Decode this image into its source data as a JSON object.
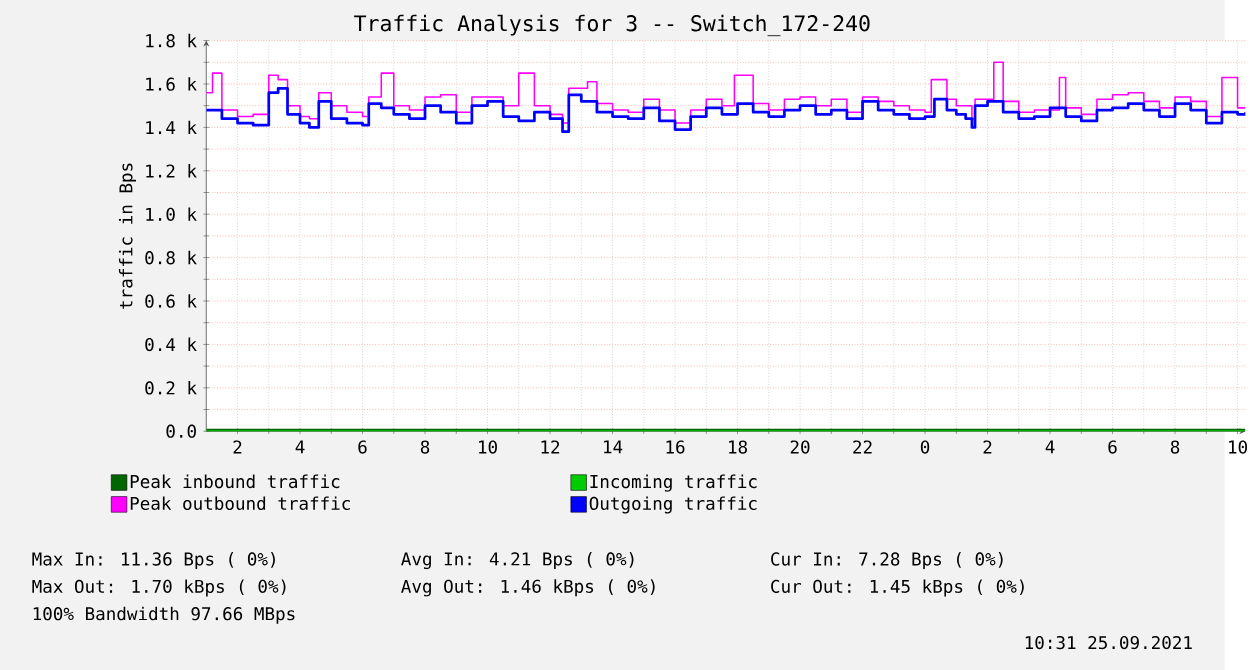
{
  "chart_data": {
    "type": "step",
    "title": "Traffic Analysis for 3 -- Switch_172-240",
    "ylabel": "traffic in Bps",
    "xlim": [
      "2021-09-24T01:00",
      "2021-09-25T10:15"
    ],
    "ylim": [
      0,
      1800
    ],
    "xticks": [
      {
        "value": "2021-09-24T02:00",
        "label": "2"
      },
      {
        "value": "2021-09-24T04:00",
        "label": "4"
      },
      {
        "value": "2021-09-24T06:00",
        "label": "6"
      },
      {
        "value": "2021-09-24T08:00",
        "label": "8"
      },
      {
        "value": "2021-09-24T10:00",
        "label": "10"
      },
      {
        "value": "2021-09-24T12:00",
        "label": "12"
      },
      {
        "value": "2021-09-24T14:00",
        "label": "14"
      },
      {
        "value": "2021-09-24T16:00",
        "label": "16"
      },
      {
        "value": "2021-09-24T18:00",
        "label": "18"
      },
      {
        "value": "2021-09-24T20:00",
        "label": "20"
      },
      {
        "value": "2021-09-24T22:00",
        "label": "22"
      },
      {
        "value": "2021-09-25T00:00",
        "label": "0"
      },
      {
        "value": "2021-09-25T02:00",
        "label": "2"
      },
      {
        "value": "2021-09-25T04:00",
        "label": "4"
      },
      {
        "value": "2021-09-25T06:00",
        "label": "6"
      },
      {
        "value": "2021-09-25T08:00",
        "label": "8"
      },
      {
        "value": "2021-09-25T10:00",
        "label": "10"
      }
    ],
    "yticks": [
      {
        "value": 0,
        "label": "0.0"
      },
      {
        "value": 200,
        "label": "0.2 k"
      },
      {
        "value": 400,
        "label": "0.4 k"
      },
      {
        "value": 600,
        "label": "0.6 k"
      },
      {
        "value": 800,
        "label": "0.8 k"
      },
      {
        "value": 1000,
        "label": "1.0 k"
      },
      {
        "value": 1200,
        "label": "1.2 k"
      },
      {
        "value": 1400,
        "label": "1.4 k"
      },
      {
        "value": 1600,
        "label": "1.6 k"
      },
      {
        "value": 1800,
        "label": "1.8 k"
      }
    ],
    "grid": true,
    "legend": "bottom",
    "series": [
      {
        "name": "Peak inbound traffic",
        "color": "#006600",
        "x": [
          "2021-09-24T01:00",
          "2021-09-25T10:15"
        ],
        "values": [
          0,
          0
        ]
      },
      {
        "name": "Incoming traffic",
        "color": "#00cc00",
        "x": [
          "2021-09-24T01:00",
          "2021-09-25T10:15"
        ],
        "values": [
          0,
          0
        ]
      },
      {
        "name": "Peak outbound traffic",
        "color": "#ff00ff",
        "x": [
          "2021-09-24T01:00",
          "2021-09-24T01:12",
          "2021-09-24T01:30",
          "2021-09-24T02:00",
          "2021-09-24T02:30",
          "2021-09-24T03:00",
          "2021-09-24T03:18",
          "2021-09-24T03:36",
          "2021-09-24T04:00",
          "2021-09-24T04:18",
          "2021-09-24T04:36",
          "2021-09-24T05:00",
          "2021-09-24T05:30",
          "2021-09-24T06:00",
          "2021-09-24T06:12",
          "2021-09-24T06:36",
          "2021-09-24T07:00",
          "2021-09-24T07:30",
          "2021-09-24T08:00",
          "2021-09-24T08:30",
          "2021-09-24T09:00",
          "2021-09-24T09:30",
          "2021-09-24T10:00",
          "2021-09-24T10:30",
          "2021-09-24T11:00",
          "2021-09-24T11:30",
          "2021-09-24T12:00",
          "2021-09-24T12:24",
          "2021-09-24T12:36",
          "2021-09-24T13:12",
          "2021-09-24T13:30",
          "2021-09-24T14:00",
          "2021-09-24T14:30",
          "2021-09-24T15:00",
          "2021-09-24T15:30",
          "2021-09-24T16:00",
          "2021-09-24T16:30",
          "2021-09-24T17:00",
          "2021-09-24T17:30",
          "2021-09-24T17:54",
          "2021-09-24T18:30",
          "2021-09-24T19:00",
          "2021-09-24T19:30",
          "2021-09-24T20:00",
          "2021-09-24T20:30",
          "2021-09-24T21:00",
          "2021-09-24T21:30",
          "2021-09-24T22:00",
          "2021-09-24T22:30",
          "2021-09-24T23:00",
          "2021-09-24T23:30",
          "2021-09-25T00:00",
          "2021-09-25T00:12",
          "2021-09-25T00:42",
          "2021-09-25T01:00",
          "2021-09-25T01:30",
          "2021-09-25T01:36",
          "2021-09-25T02:12",
          "2021-09-25T02:30",
          "2021-09-25T03:00",
          "2021-09-25T03:30",
          "2021-09-25T04:18",
          "2021-09-25T04:30",
          "2021-09-25T05:00",
          "2021-09-25T05:30",
          "2021-09-25T06:00",
          "2021-09-25T06:30",
          "2021-09-25T07:00",
          "2021-09-25T07:30",
          "2021-09-25T08:00",
          "2021-09-25T08:30",
          "2021-09-25T09:00",
          "2021-09-25T09:30",
          "2021-09-25T10:00",
          "2021-09-25T10:15"
        ],
        "values": [
          1560,
          1650,
          1480,
          1450,
          1460,
          1640,
          1620,
          1500,
          1450,
          1440,
          1560,
          1500,
          1470,
          1450,
          1540,
          1650,
          1500,
          1480,
          1540,
          1550,
          1470,
          1540,
          1540,
          1500,
          1650,
          1500,
          1460,
          1420,
          1580,
          1610,
          1510,
          1480,
          1470,
          1530,
          1480,
          1420,
          1480,
          1530,
          1500,
          1640,
          1510,
          1480,
          1530,
          1540,
          1500,
          1530,
          1470,
          1540,
          1520,
          1500,
          1480,
          1470,
          1620,
          1530,
          1500,
          1440,
          1530,
          1700,
          1520,
          1470,
          1480,
          1630,
          1490,
          1460,
          1530,
          1550,
          1560,
          1520,
          1490,
          1540,
          1520,
          1450,
          1630,
          1490,
          1490
        ]
      },
      {
        "name": "Outgoing traffic",
        "color": "#0000ff",
        "x": [
          "2021-09-24T01:00",
          "2021-09-24T01:30",
          "2021-09-24T02:00",
          "2021-09-24T02:30",
          "2021-09-24T03:00",
          "2021-09-24T03:18",
          "2021-09-24T03:36",
          "2021-09-24T04:00",
          "2021-09-24T04:18",
          "2021-09-24T04:36",
          "2021-09-24T05:00",
          "2021-09-24T05:30",
          "2021-09-24T06:00",
          "2021-09-24T06:12",
          "2021-09-24T06:36",
          "2021-09-24T07:00",
          "2021-09-24T07:30",
          "2021-09-24T08:00",
          "2021-09-24T08:30",
          "2021-09-24T09:00",
          "2021-09-24T09:30",
          "2021-09-24T10:00",
          "2021-09-24T10:30",
          "2021-09-24T11:00",
          "2021-09-24T11:30",
          "2021-09-24T12:00",
          "2021-09-24T12:24",
          "2021-09-24T12:36",
          "2021-09-24T13:00",
          "2021-09-24T13:30",
          "2021-09-24T14:00",
          "2021-09-24T14:30",
          "2021-09-24T15:00",
          "2021-09-24T15:30",
          "2021-09-24T16:00",
          "2021-09-24T16:30",
          "2021-09-24T17:00",
          "2021-09-24T17:30",
          "2021-09-24T18:00",
          "2021-09-24T18:30",
          "2021-09-24T19:00",
          "2021-09-24T19:30",
          "2021-09-24T20:00",
          "2021-09-24T20:30",
          "2021-09-24T21:00",
          "2021-09-24T21:30",
          "2021-09-24T22:00",
          "2021-09-24T22:30",
          "2021-09-24T23:00",
          "2021-09-24T23:30",
          "2021-09-25T00:00",
          "2021-09-25T00:18",
          "2021-09-25T00:42",
          "2021-09-25T01:00",
          "2021-09-25T01:18",
          "2021-09-25T01:30",
          "2021-09-25T01:36",
          "2021-09-25T02:00",
          "2021-09-25T02:30",
          "2021-09-25T03:00",
          "2021-09-25T03:30",
          "2021-09-25T04:00",
          "2021-09-25T04:30",
          "2021-09-25T05:00",
          "2021-09-25T05:30",
          "2021-09-25T06:00",
          "2021-09-25T06:30",
          "2021-09-25T07:00",
          "2021-09-25T07:30",
          "2021-09-25T08:00",
          "2021-09-25T08:30",
          "2021-09-25T09:00",
          "2021-09-25T09:30",
          "2021-09-25T10:00",
          "2021-09-25T10:15"
        ],
        "values": [
          1480,
          1440,
          1420,
          1410,
          1560,
          1580,
          1460,
          1420,
          1400,
          1520,
          1440,
          1420,
          1410,
          1510,
          1490,
          1460,
          1440,
          1500,
          1470,
          1420,
          1500,
          1520,
          1450,
          1430,
          1470,
          1440,
          1380,
          1550,
          1520,
          1470,
          1450,
          1440,
          1490,
          1430,
          1390,
          1450,
          1490,
          1460,
          1510,
          1470,
          1450,
          1480,
          1500,
          1460,
          1480,
          1440,
          1520,
          1480,
          1460,
          1440,
          1450,
          1530,
          1480,
          1460,
          1440,
          1400,
          1500,
          1520,
          1470,
          1440,
          1450,
          1490,
          1450,
          1430,
          1480,
          1490,
          1510,
          1480,
          1450,
          1510,
          1480,
          1420,
          1470,
          1460,
          1470
        ]
      }
    ],
    "annotations": [
      "Max In: 11.36 Bps ( 0%)",
      "Avg In: 4.21 Bps ( 0%)",
      "Cur In: 7.28 Bps ( 0%)",
      "Max Out: 1.70 kBps ( 0%)",
      "Avg Out: 1.46 kBps ( 0%)",
      "Cur Out: 1.45 kBps ( 0%)",
      "100% Bandwidth 97.66 MBps",
      "10:31 25.09.2021"
    ]
  }
}
